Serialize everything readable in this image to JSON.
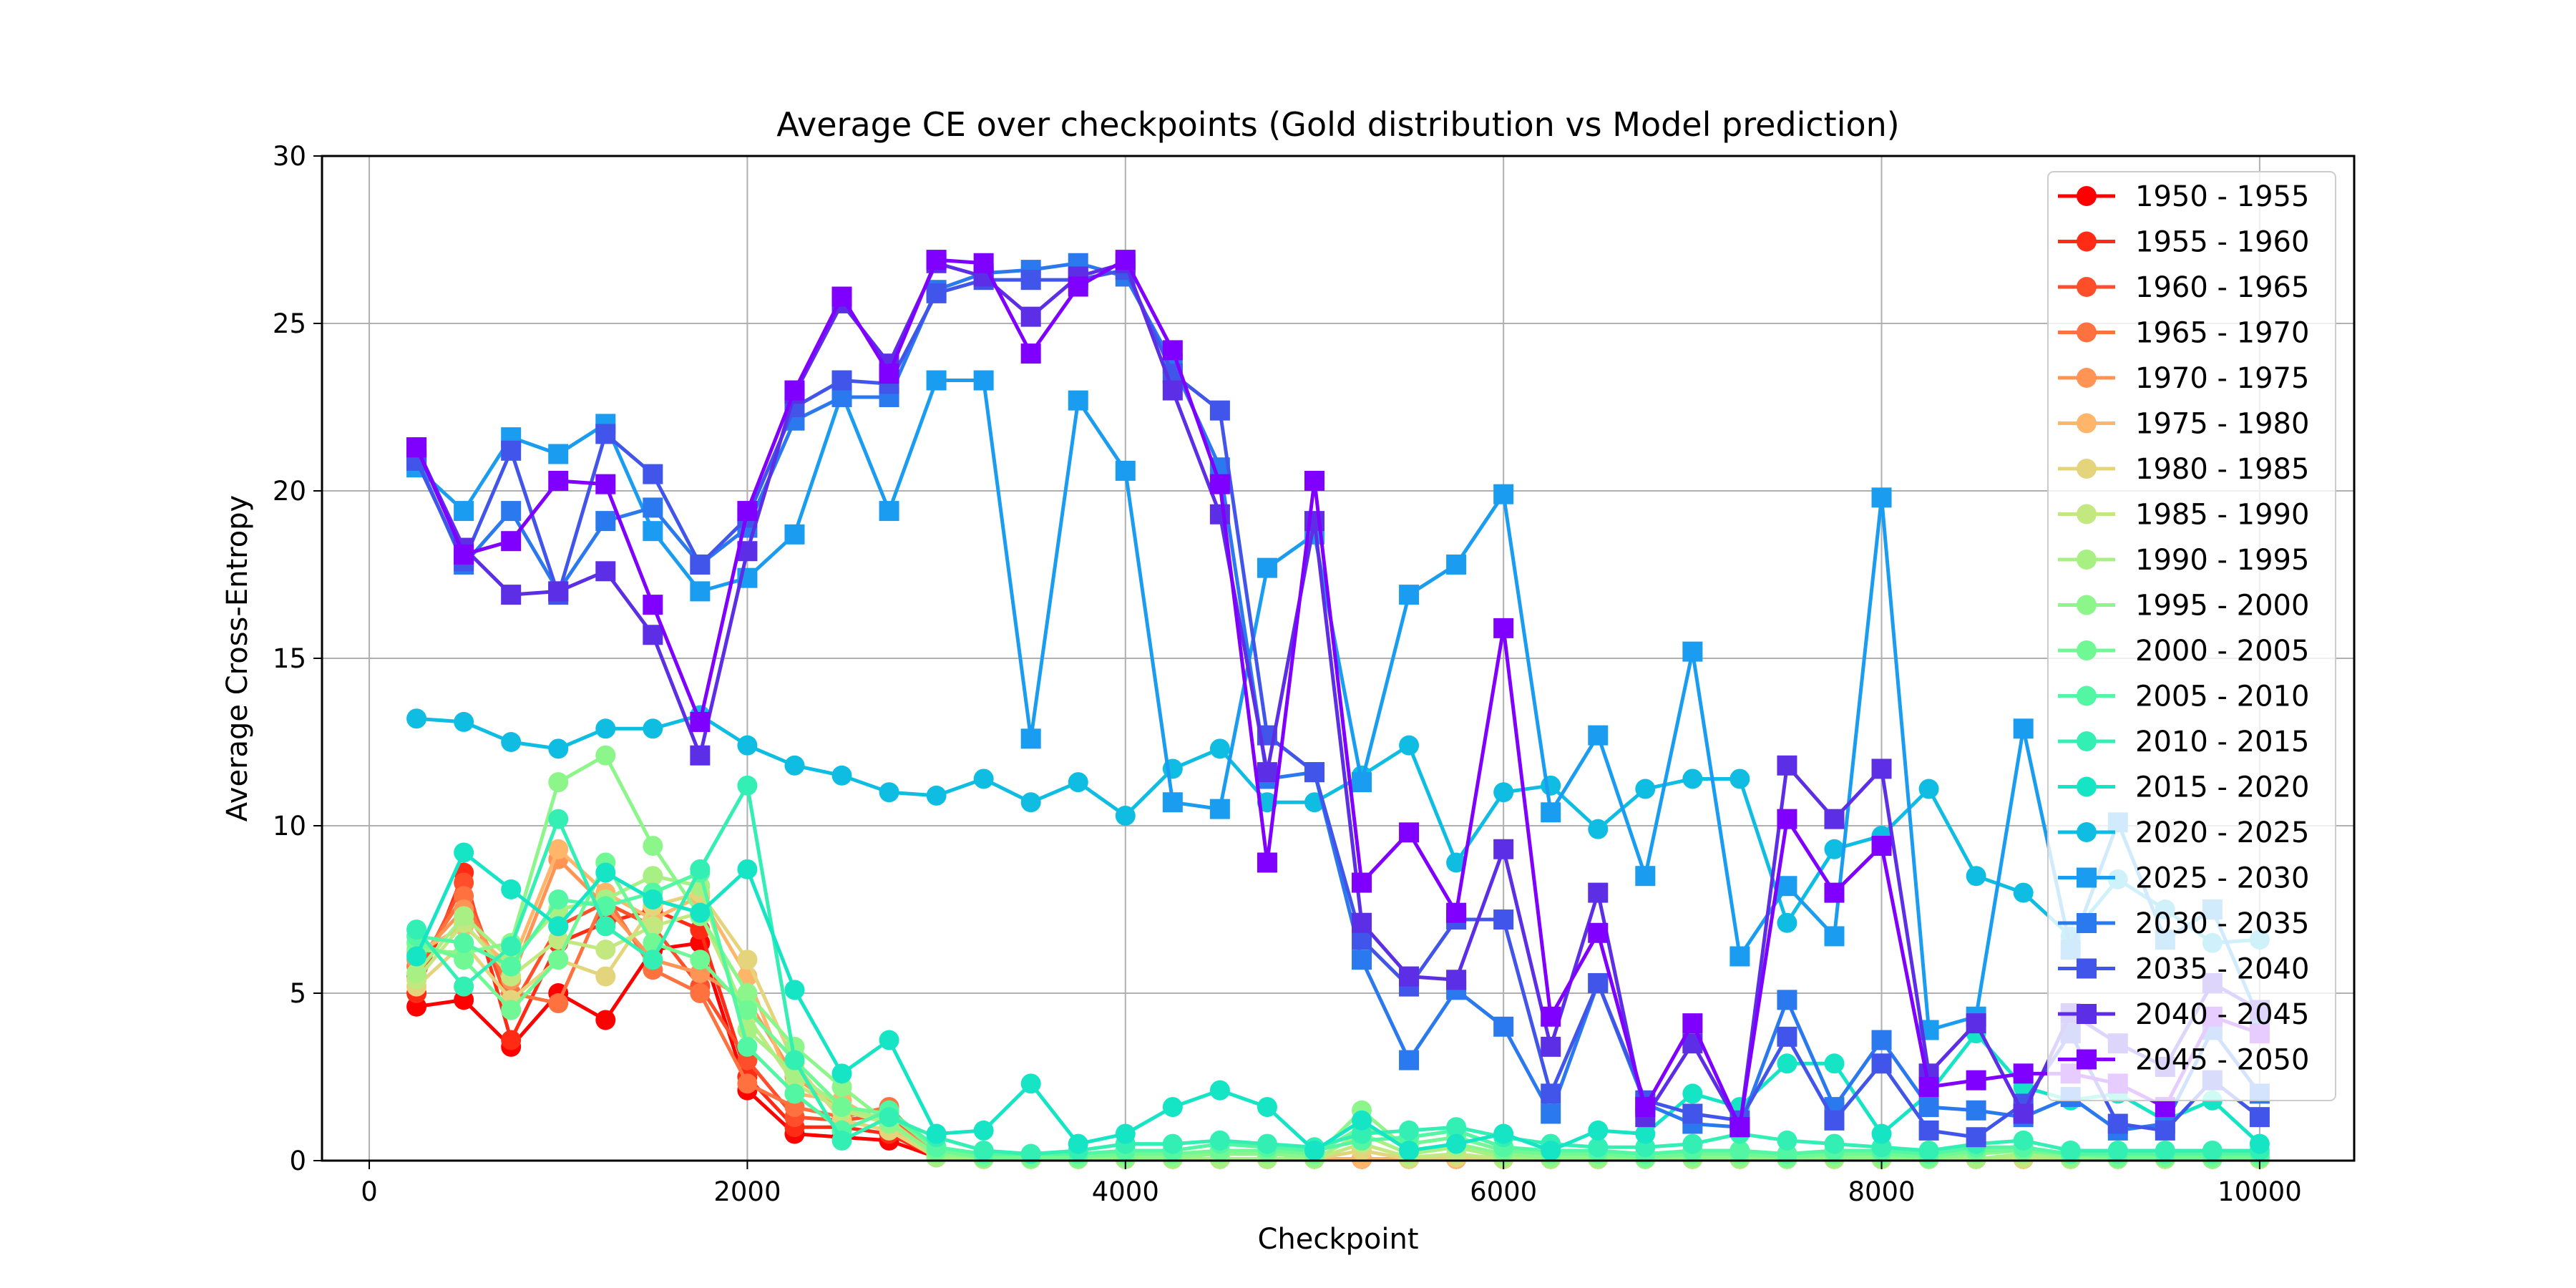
{
  "chart_data": {
    "type": "line",
    "title": "Average CE over checkpoints (Gold distribution vs Model prediction)",
    "xlabel": "Checkpoint",
    "ylabel": "Average Cross-Entropy",
    "xlim": [
      -250,
      10500
    ],
    "ylim": [
      0,
      30
    ],
    "xticks": [
      0,
      2000,
      4000,
      6000,
      8000,
      10000
    ],
    "yticks": [
      0,
      5,
      10,
      15,
      20,
      25,
      30
    ],
    "grid": true,
    "legend_position": "top-right",
    "x": [
      250,
      500,
      750,
      1000,
      1250,
      1500,
      1750,
      2000,
      2250,
      2500,
      2750,
      3000,
      3250,
      3500,
      3750,
      4000,
      4250,
      4500,
      4750,
      5000,
      5250,
      5500,
      5750,
      6000,
      6250,
      6500,
      6750,
      7000,
      7250,
      7500,
      7750,
      8000,
      8250,
      8500,
      8750,
      9000,
      9250,
      9500,
      9750,
      10000
    ],
    "series": [
      {
        "name": "1950 - 1955",
        "color": "#ff0000",
        "marker": "circle",
        "values": [
          4.6,
          4.8,
          3.4,
          5.0,
          4.2,
          6.3,
          6.5,
          2.1,
          0.8,
          0.7,
          0.6,
          0.1,
          0.05,
          0.05,
          0.05,
          0.05,
          0.05,
          0.05,
          0.05,
          0.05,
          0.05,
          0.05,
          0.05,
          0.05,
          0.05,
          0.05,
          0.05,
          0.05,
          0.05,
          0.05,
          0.05,
          0.05,
          0.05,
          0.05,
          0.05,
          0.05,
          0.05,
          0.05,
          0.05,
          0.05
        ]
      },
      {
        "name": "1955 - 1960",
        "color": "#ff2b15",
        "marker": "circle",
        "values": [
          5.0,
          8.6,
          3.6,
          6.5,
          7.1,
          7.5,
          6.9,
          2.5,
          1.0,
          1.0,
          0.8,
          0.1,
          0.05,
          0.05,
          0.05,
          0.05,
          0.05,
          0.05,
          0.05,
          0.05,
          0.05,
          0.05,
          0.05,
          0.05,
          0.05,
          0.05,
          0.05,
          0.05,
          0.05,
          0.05,
          0.05,
          0.05,
          0.05,
          0.05,
          0.05,
          0.05,
          0.05,
          0.05,
          0.05,
          0.05
        ]
      },
      {
        "name": "1960 - 1965",
        "color": "#ff4f2a",
        "marker": "circle",
        "values": [
          5.5,
          8.3,
          4.5,
          7.0,
          7.7,
          7.0,
          5.2,
          3.0,
          1.3,
          1.2,
          1.4,
          0.15,
          0.05,
          0.05,
          0.05,
          0.05,
          0.05,
          0.05,
          0.05,
          0.05,
          0.05,
          0.05,
          0.05,
          0.05,
          0.05,
          0.05,
          0.05,
          0.05,
          0.05,
          0.05,
          0.05,
          0.05,
          0.05,
          0.05,
          0.05,
          0.05,
          0.05,
          0.05,
          0.05,
          0.05
        ]
      },
      {
        "name": "1965 - 1970",
        "color": "#ff7240",
        "marker": "circle",
        "values": [
          5.8,
          7.9,
          5.0,
          4.7,
          7.9,
          5.7,
          5.0,
          2.3,
          1.6,
          1.3,
          1.6,
          0.15,
          0.05,
          0.05,
          0.05,
          0.05,
          0.05,
          0.05,
          0.05,
          0.05,
          0.05,
          0.05,
          0.05,
          0.05,
          0.05,
          0.05,
          0.05,
          0.05,
          0.05,
          0.05,
          0.05,
          0.05,
          0.05,
          0.05,
          0.05,
          0.05,
          0.05,
          0.05,
          0.05,
          0.05
        ]
      },
      {
        "name": "1970 - 1975",
        "color": "#ff9455",
        "marker": "circle",
        "values": [
          6.0,
          7.5,
          5.4,
          9.0,
          7.6,
          6.0,
          5.6,
          4.8,
          2.5,
          1.5,
          1.2,
          0.2,
          0.05,
          0.05,
          0.05,
          0.05,
          0.05,
          0.05,
          0.05,
          0.05,
          0.05,
          0.05,
          0.05,
          0.05,
          0.05,
          0.05,
          0.05,
          0.05,
          0.05,
          0.05,
          0.05,
          0.05,
          0.05,
          0.05,
          0.05,
          0.05,
          0.05,
          0.05,
          0.05,
          0.05
        ]
      },
      {
        "name": "1975 - 1980",
        "color": "#ffb56a",
        "marker": "circle",
        "values": [
          6.2,
          7.0,
          5.8,
          9.3,
          8.0,
          7.2,
          7.9,
          5.5,
          2.0,
          1.8,
          1.0,
          0.2,
          0.05,
          0.05,
          0.05,
          0.05,
          0.05,
          0.05,
          0.05,
          0.05,
          0.05,
          0.05,
          0.05,
          0.05,
          0.05,
          0.05,
          0.05,
          0.05,
          0.05,
          0.05,
          0.05,
          0.05,
          0.05,
          0.05,
          0.05,
          0.05,
          0.05,
          0.05,
          0.05,
          0.05
        ]
      },
      {
        "name": "1980 - 1985",
        "color": "#e4d47c",
        "marker": "circle",
        "values": [
          5.2,
          6.5,
          4.8,
          6.0,
          5.5,
          7.6,
          8.0,
          6.0,
          2.9,
          1.2,
          0.9,
          0.1,
          0.05,
          0.05,
          0.05,
          0.05,
          0.05,
          0.05,
          0.05,
          0.05,
          0.3,
          0.05,
          0.1,
          0.05,
          0.05,
          0.05,
          0.05,
          0.05,
          0.05,
          0.05,
          0.05,
          0.05,
          0.05,
          0.05,
          0.05,
          0.05,
          0.05,
          0.05,
          0.05,
          0.05
        ]
      },
      {
        "name": "1985 - 1990",
        "color": "#c2e87f",
        "marker": "circle",
        "values": [
          5.4,
          7.1,
          5.5,
          6.6,
          6.3,
          7.0,
          7.4,
          4.3,
          2.3,
          1.5,
          1.1,
          0.1,
          0.05,
          0.05,
          0.05,
          0.05,
          0.05,
          0.05,
          0.05,
          0.05,
          0.5,
          0.1,
          0.2,
          0.05,
          0.05,
          0.05,
          0.05,
          0.05,
          0.05,
          0.05,
          0.05,
          0.05,
          0.05,
          0.05,
          0.1,
          0.05,
          0.05,
          0.05,
          0.05,
          0.05
        ]
      },
      {
        "name": "1990 - 1995",
        "color": "#a8f083",
        "marker": "circle",
        "values": [
          5.6,
          7.3,
          6.0,
          7.5,
          7.8,
          8.5,
          8.2,
          3.9,
          2.6,
          1.6,
          1.2,
          0.1,
          0.05,
          0.05,
          0.05,
          0.05,
          0.05,
          0.05,
          0.05,
          0.05,
          0.8,
          0.2,
          0.4,
          0.1,
          0.05,
          0.05,
          0.05,
          0.05,
          0.05,
          0.05,
          0.05,
          0.05,
          0.05,
          0.05,
          0.2,
          0.05,
          0.05,
          0.05,
          0.05,
          0.05
        ]
      },
      {
        "name": "1995 - 2000",
        "color": "#8df68b",
        "marker": "circle",
        "values": [
          6.3,
          6.2,
          6.5,
          11.3,
          12.1,
          9.4,
          7.3,
          5.0,
          3.4,
          2.2,
          1.1,
          0.2,
          0.1,
          0.05,
          0.05,
          0.1,
          0.1,
          0.2,
          0.2,
          0.1,
          1.5,
          0.3,
          0.5,
          0.2,
          0.1,
          0.1,
          0.05,
          0.1,
          0.1,
          0.05,
          0.1,
          0.1,
          0.05,
          0.2,
          0.3,
          0.1,
          0.05,
          0.1,
          0.05,
          0.1
        ]
      },
      {
        "name": "2000 - 2005",
        "color": "#70f894",
        "marker": "circle",
        "values": [
          6.5,
          6.0,
          4.5,
          6.0,
          8.9,
          6.5,
          6.0,
          4.5,
          3.0,
          1.6,
          1.4,
          0.3,
          0.1,
          0.1,
          0.1,
          0.2,
          0.2,
          0.3,
          0.3,
          0.2,
          1.0,
          0.5,
          0.7,
          0.3,
          0.2,
          0.2,
          0.1,
          0.2,
          0.2,
          0.1,
          0.2,
          0.2,
          0.1,
          0.3,
          0.3,
          0.2,
          0.1,
          0.1,
          0.1,
          0.1
        ]
      },
      {
        "name": "2005 - 2010",
        "color": "#52f6a3",
        "marker": "circle",
        "values": [
          6.7,
          6.5,
          5.8,
          7.8,
          7.6,
          8.0,
          8.6,
          3.4,
          2.0,
          0.9,
          1.5,
          0.4,
          0.2,
          0.2,
          0.2,
          0.3,
          0.3,
          0.5,
          0.4,
          0.3,
          0.6,
          0.7,
          0.9,
          0.4,
          0.3,
          0.3,
          0.2,
          0.3,
          0.3,
          0.2,
          0.3,
          0.3,
          0.2,
          0.4,
          0.4,
          0.2,
          0.2,
          0.2,
          0.2,
          0.2
        ]
      },
      {
        "name": "2010 - 2015",
        "color": "#33efb3",
        "marker": "circle",
        "values": [
          6.9,
          5.2,
          6.4,
          10.2,
          7.0,
          6.0,
          8.7,
          11.2,
          3.0,
          0.6,
          1.3,
          0.7,
          0.3,
          0.2,
          0.3,
          0.5,
          0.5,
          0.6,
          0.5,
          0.4,
          0.8,
          0.9,
          1.0,
          0.7,
          0.5,
          0.4,
          0.4,
          0.5,
          0.8,
          0.6,
          0.5,
          0.4,
          0.3,
          0.5,
          0.6,
          0.3,
          0.3,
          0.3,
          0.3,
          0.3
        ]
      },
      {
        "name": "2015 - 2020",
        "color": "#15e5c5",
        "marker": "circle",
        "values": [
          6.1,
          9.2,
          8.1,
          7.0,
          8.6,
          7.8,
          7.4,
          8.7,
          5.1,
          2.6,
          3.6,
          0.8,
          0.9,
          2.3,
          0.5,
          0.8,
          1.6,
          2.1,
          1.6,
          0.3,
          1.2,
          0.3,
          0.5,
          0.8,
          0.3,
          0.9,
          0.8,
          2.0,
          1.6,
          2.9,
          2.9,
          0.8,
          2.0,
          3.8,
          2.2,
          1.8,
          2.0,
          1.2,
          1.8,
          0.5
        ]
      },
      {
        "name": "2020 - 2025",
        "color": "#0fbde3",
        "marker": "circle",
        "values": [
          13.2,
          13.1,
          12.5,
          12.3,
          12.9,
          12.9,
          13.3,
          12.4,
          11.8,
          11.5,
          11.0,
          10.9,
          11.4,
          10.7,
          11.3,
          10.3,
          11.7,
          12.3,
          10.7,
          10.7,
          11.5,
          12.4,
          8.9,
          11.0,
          11.2,
          9.9,
          11.1,
          11.4,
          11.4,
          7.1,
          9.3,
          9.7,
          11.1,
          8.5,
          8.0,
          6.7,
          8.4,
          7.5,
          6.5,
          6.6
        ]
      },
      {
        "name": "2025 - 2030",
        "color": "#1a9df0",
        "marker": "square",
        "values": [
          20.7,
          19.4,
          21.6,
          21.1,
          22.0,
          18.8,
          17.0,
          17.4,
          18.7,
          22.9,
          19.4,
          23.3,
          23.3,
          12.6,
          22.7,
          20.6,
          10.7,
          10.5,
          17.7,
          18.7,
          11.3,
          16.9,
          17.8,
          19.9,
          10.4,
          12.7,
          8.5,
          15.2,
          6.1,
          8.2,
          6.7,
          19.8,
          3.9,
          4.3,
          12.9,
          6.3,
          10.1,
          6.6,
          7.5,
          4.2
        ]
      },
      {
        "name": "2030 - 2035",
        "color": "#2b79ef",
        "marker": "square",
        "values": [
          21.0,
          17.8,
          19.4,
          17.0,
          19.1,
          19.5,
          17.8,
          18.9,
          22.1,
          22.8,
          22.8,
          26.0,
          26.5,
          26.6,
          26.8,
          26.4,
          23.8,
          20.7,
          11.4,
          11.6,
          6.0,
          3.0,
          5.1,
          4.0,
          1.4,
          5.3,
          1.7,
          1.1,
          1.0,
          4.8,
          1.6,
          3.6,
          1.6,
          1.5,
          1.3,
          1.9,
          0.9,
          1.1,
          3.9,
          2.0
        ]
      },
      {
        "name": "2035 - 2040",
        "color": "#4255ea",
        "marker": "square",
        "values": [
          20.9,
          17.9,
          21.2,
          16.9,
          21.7,
          20.5,
          17.8,
          19.2,
          22.5,
          23.3,
          23.2,
          25.9,
          26.3,
          26.3,
          26.3,
          26.6,
          23.5,
          22.4,
          12.7,
          11.6,
          6.6,
          5.2,
          7.2,
          7.2,
          2.0,
          5.3,
          1.8,
          1.4,
          1.2,
          3.7,
          1.2,
          2.9,
          0.9,
          0.7,
          1.7,
          3.8,
          1.1,
          0.9,
          2.4,
          1.3
        ]
      },
      {
        "name": "2040 - 2045",
        "color": "#5c2ee6",
        "marker": "square",
        "values": [
          21.3,
          18.3,
          16.9,
          17.0,
          17.6,
          15.7,
          12.1,
          18.2,
          22.9,
          25.6,
          23.8,
          26.8,
          26.4,
          25.2,
          26.4,
          26.8,
          23.0,
          19.3,
          11.6,
          19.1,
          7.1,
          5.5,
          5.4,
          9.3,
          3.4,
          8.0,
          1.3,
          3.5,
          1.0,
          11.8,
          10.2,
          11.7,
          2.6,
          4.1,
          1.4,
          4.4,
          3.5,
          2.8,
          5.3,
          4.5
        ]
      },
      {
        "name": "2045 - 2050",
        "color": "#8000ff",
        "marker": "square",
        "values": [
          21.3,
          18.1,
          18.5,
          20.3,
          20.2,
          16.6,
          13.1,
          19.4,
          23.0,
          25.8,
          23.5,
          26.9,
          26.8,
          24.1,
          26.1,
          26.9,
          24.2,
          20.2,
          8.9,
          20.3,
          8.3,
          9.8,
          7.4,
          15.9,
          4.3,
          6.8,
          1.6,
          4.1,
          1.0,
          10.2,
          8.0,
          9.4,
          2.2,
          2.4,
          2.6,
          2.6,
          2.3,
          1.6,
          4.3,
          3.8
        ]
      }
    ]
  }
}
